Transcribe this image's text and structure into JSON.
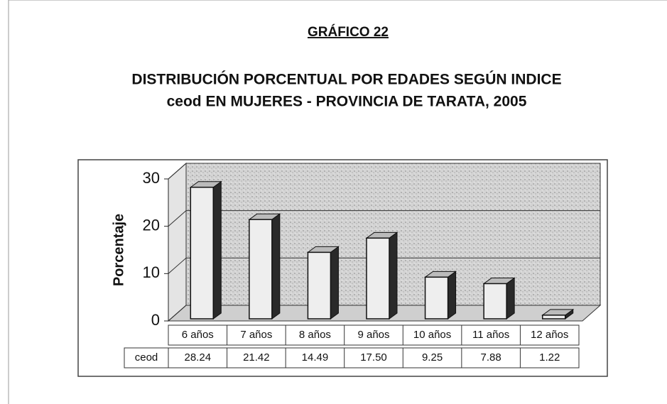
{
  "chart_data": {
    "type": "bar3d",
    "heading": "GRÁFICO 22",
    "title": [
      "DISTRIBUCIÓN PORCENTUAL POR EDADES SEGÚN  INDICE",
      "ceod EN MUJERES - PROVINCIA DE TARATA, 2005"
    ],
    "ylabel": "Porcentaje",
    "categories": [
      "6 años",
      "7 años",
      "8 años",
      "9 años",
      "10 años",
      "11 años",
      "12 años"
    ],
    "series": [
      {
        "name": "ceod",
        "color": "#eeeeee",
        "values": [
          28.24,
          21.42,
          14.49,
          17.5,
          9.25,
          7.88,
          1.22
        ],
        "value_labels": [
          "28.24",
          "21.42",
          "14.49",
          "17.50",
          "9.25",
          "7.88",
          "1.22"
        ]
      }
    ],
    "ylim": [
      0,
      30
    ],
    "yticks": [
      0,
      10,
      20,
      30
    ],
    "grid": true
  }
}
